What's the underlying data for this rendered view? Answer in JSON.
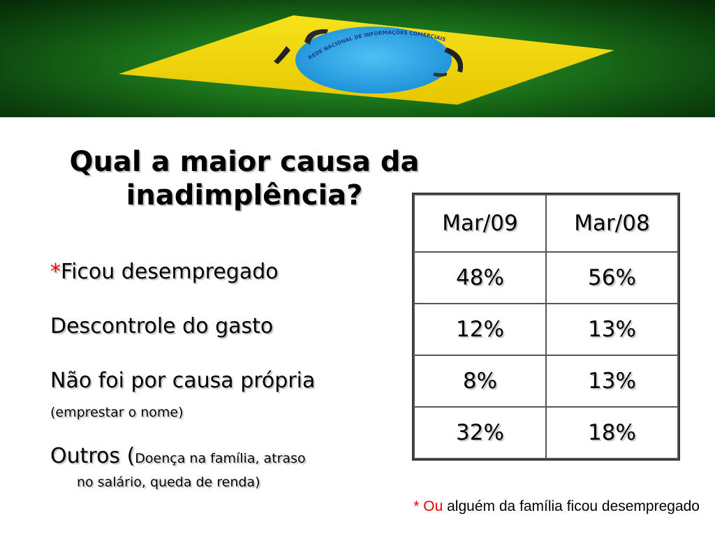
{
  "banner": {
    "arc_text": "REDE NACIONAL DE INFORMAÇÕES COMERCIAIS",
    "colors": {
      "green": "#1e7a1c",
      "yellow": "#f2d300",
      "blue": "#1a9fe0"
    }
  },
  "title": {
    "line1": "Qual a maior causa da",
    "line2": "inadimplência?"
  },
  "causes": {
    "item1_star": "*",
    "item1": "Ficou desempregado",
    "item2": "Descontrole do gasto",
    "item3": "Não foi por causa própria",
    "item3_note": "(emprestar o nome)",
    "item4_lead": "Outros (",
    "item4_note_line1": "Doença na família, atraso",
    "item4_note_line2": "no salário, queda de renda)"
  },
  "table": {
    "headers": [
      "Mar/09",
      "Mar/08"
    ],
    "rows": [
      [
        "48%",
        "56%"
      ],
      [
        "12%",
        "13%"
      ],
      [
        "8%",
        "13%"
      ],
      [
        "32%",
        "18%"
      ]
    ]
  },
  "footnote": {
    "star_ou": "* Ou",
    "rest": "alguém da família ficou desempregado"
  }
}
